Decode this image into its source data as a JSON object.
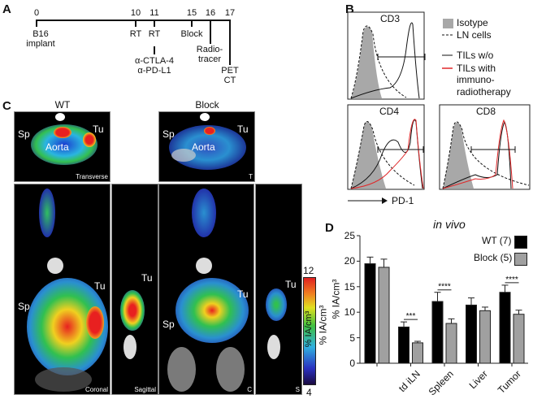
{
  "panels": {
    "a": "A",
    "b": "B",
    "c": "C",
    "d": "D"
  },
  "timeline": {
    "days": [
      "0",
      "10",
      "11",
      "15",
      "16",
      "17"
    ],
    "events": [
      "B16\nimplant",
      "RT",
      "RT",
      "Block",
      "Radio-\ntracer",
      "PET\nCT"
    ],
    "treatment": "α-CTLA-4\nα-PD-L1"
  },
  "flow": {
    "panels": [
      "CD3",
      "CD4",
      "CD8"
    ],
    "legend": [
      "Isotype",
      "LN cells",
      "TILs w/o",
      "TILs with",
      "immuno-",
      "radiotherapy"
    ],
    "xlabel": "PD-1",
    "colors": {
      "isotype": "#a8a8a8",
      "tils_with": "#e0282a",
      "tils_without": "#111111"
    }
  },
  "imaging": {
    "groups": [
      "WT",
      "Block"
    ],
    "labels": {
      "sp": "Sp",
      "tu": "Tu",
      "aorta": "Aorta"
    },
    "views_wt": [
      "Transverse",
      "Coronal",
      "Sagittal"
    ],
    "views_block": [
      "T",
      "C",
      "S"
    ],
    "colorbar": {
      "max": "12",
      "min": "4",
      "label": "% IA/cm³"
    },
    "side_label": "% IA/cm³"
  },
  "chart_data": {
    "type": "bar",
    "title": "in vivo",
    "ylabel": "% IA/cm³",
    "ylim": [
      0,
      25
    ],
    "yticks": [
      "0",
      "5",
      "10",
      "15",
      "20",
      "25"
    ],
    "categories": [
      "",
      "td iLN",
      "Spleen",
      "Liver",
      "Tumor"
    ],
    "series": [
      {
        "name": "WT (7)",
        "color": "#000000",
        "values": [
          19.5,
          7.1,
          12.1,
          11.4,
          13.9
        ],
        "errors": [
          1.3,
          1.0,
          1.8,
          1.4,
          1.4
        ]
      },
      {
        "name": "Block (5)",
        "color": "#a0a0a0",
        "values": [
          18.8,
          4.0,
          7.8,
          10.3,
          9.6
        ],
        "errors": [
          1.6,
          0.3,
          0.9,
          0.7,
          0.8
        ]
      }
    ],
    "significance": [
      null,
      "***",
      "****",
      null,
      "****"
    ],
    "legend": "top-right",
    "grid": false
  }
}
